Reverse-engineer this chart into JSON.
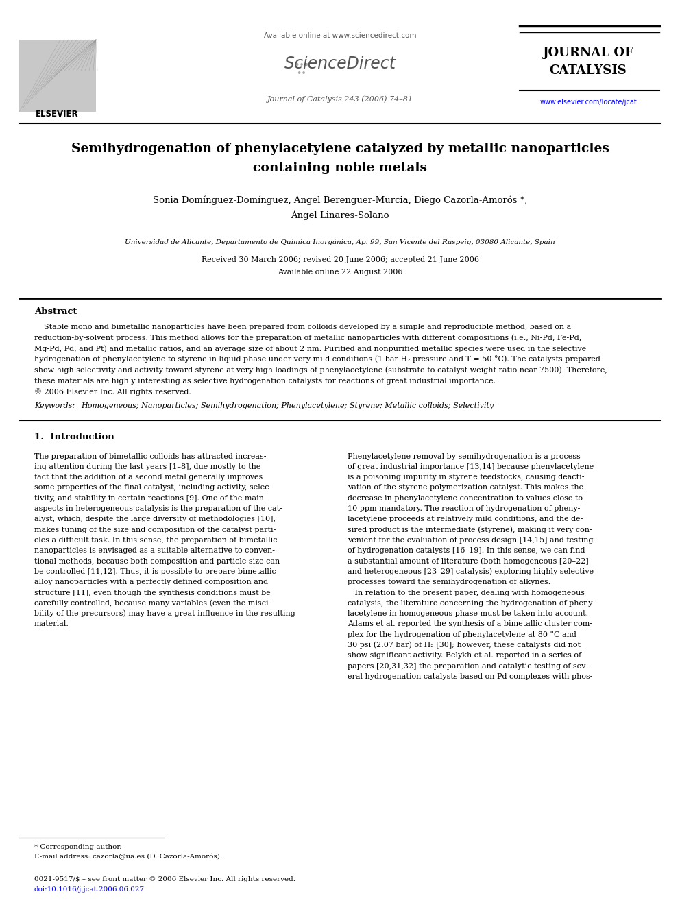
{
  "bg_color": "#ffffff",
  "header_available": "Available online at www.sciencedirect.com",
  "header_sd": "ScienceDirect",
  "header_journal_info": "Journal of Catalysis 243 (2006) 74–81",
  "header_journal_line1": "JOURNAL OF",
  "header_journal_line2": "CATALYSIS",
  "header_url": "www.elsevier.com/locate/jcat",
  "header_elsevier": "ELSEVIER",
  "title_line1": "Semihydrogenation of phenylacetylene catalyzed by metallic nanoparticles",
  "title_line2": "containing noble metals",
  "author_line1": "Sonia Domínguez-Domínguez, Ángel Berenguer-Murcia, Diego Cazorla-Amorós *,",
  "author_line2": "Ángel Linares-Solano",
  "affiliation": "Universidad de Alicante, Departamento de Química Inorgánica, Ap. 99, San Vicente del Raspeig, 03080 Alicante, Spain",
  "received": "Received 30 March 2006; revised 20 June 2006; accepted 21 June 2006",
  "available_online": "Available online 22 August 2006",
  "abstract_title": "Abstract",
  "abstract_lines": [
    "    Stable mono and bimetallic nanoparticles have been prepared from colloids developed by a simple and reproducible method, based on a",
    "reduction-by-solvent process. This method allows for the preparation of metallic nanoparticles with different compositions (i.e., Ni-Pd, Fe-Pd,",
    "Mg-Pd, Pd, and Pt) and metallic ratios, and an average size of about 2 nm. Purified and nonpurified metallic species were used in the selective",
    "hydrogenation of phenylacetylene to styrene in liquid phase under very mild conditions (1 bar H₂ pressure and T = 50 °C). The catalysts prepared",
    "show high selectivity and activity toward styrene at very high loadings of phenylacetylene (substrate-to-catalyst weight ratio near 7500). Therefore,",
    "these materials are highly interesting as selective hydrogenation catalysts for reactions of great industrial importance.",
    "© 2006 Elsevier Inc. All rights reserved."
  ],
  "keywords_label": "Keywords:",
  "keywords_text": "Homogeneous; Nanoparticles; Semihydrogenation; Phenylacetylene; Styrene; Metallic colloids; Selectivity",
  "intro_title": "1.  Introduction",
  "col1_lines": [
    "The preparation of bimetallic colloids has attracted increas-",
    "ing attention during the last years [1–8], due mostly to the",
    "fact that the addition of a second metal generally improves",
    "some properties of the final catalyst, including activity, selec-",
    "tivity, and stability in certain reactions [9]. One of the main",
    "aspects in heterogeneous catalysis is the preparation of the cat-",
    "alyst, which, despite the large diversity of methodologies [10],",
    "makes tuning of the size and composition of the catalyst parti-",
    "cles a difficult task. In this sense, the preparation of bimetallic",
    "nanoparticles is envisaged as a suitable alternative to conven-",
    "tional methods, because both composition and particle size can",
    "be controlled [11,12]. Thus, it is possible to prepare bimetallic",
    "alloy nanoparticles with a perfectly defined composition and",
    "structure [11], even though the synthesis conditions must be",
    "carefully controlled, because many variables (even the misci-",
    "bility of the precursors) may have a great influence in the resulting",
    "material."
  ],
  "col2_lines": [
    "Phenylacetylene removal by semihydrogenation is a process",
    "of great industrial importance [13,14] because phenylacetylene",
    "is a poisoning impurity in styrene feedstocks, causing deacti-",
    "vation of the styrene polymerization catalyst. This makes the",
    "decrease in phenylacetylene concentration to values close to",
    "10 ppm mandatory. The reaction of hydrogenation of pheny-",
    "lacetylene proceeds at relatively mild conditions, and the de-",
    "sired product is the intermediate (styrene), making it very con-",
    "venient for the evaluation of process design [14,15] and testing",
    "of hydrogenation catalysts [16–19]. In this sense, we can find",
    "a substantial amount of literature (both homogeneous [20–22]",
    "and heterogeneous [23–29] catalysis) exploring highly selective",
    "processes toward the semihydrogenation of alkynes.",
    "   In relation to the present paper, dealing with homogeneous",
    "catalysis, the literature concerning the hydrogenation of pheny-",
    "lacetylene in homogeneous phase must be taken into account.",
    "Adams et al. reported the synthesis of a bimetallic cluster com-",
    "plex for the hydrogenation of phenylacetylene at 80 °C and",
    "30 psi (2.07 bar) of H₂ [30]; however, these catalysts did not",
    "show significant activity. Belykh et al. reported in a series of",
    "papers [20,31,32] the preparation and catalytic testing of sev-",
    "eral hydrogenation catalysts based on Pd complexes with phos-"
  ],
  "footnote1": "* Corresponding author.",
  "footnote2": "E-mail address: cazorla@ua.es (D. Cazorla-Amorós).",
  "footer1": "0021-9517/$ – see front matter © 2006 Elsevier Inc. All rights reserved.",
  "footer2": "doi:10.1016/j.jcat.2006.06.027"
}
